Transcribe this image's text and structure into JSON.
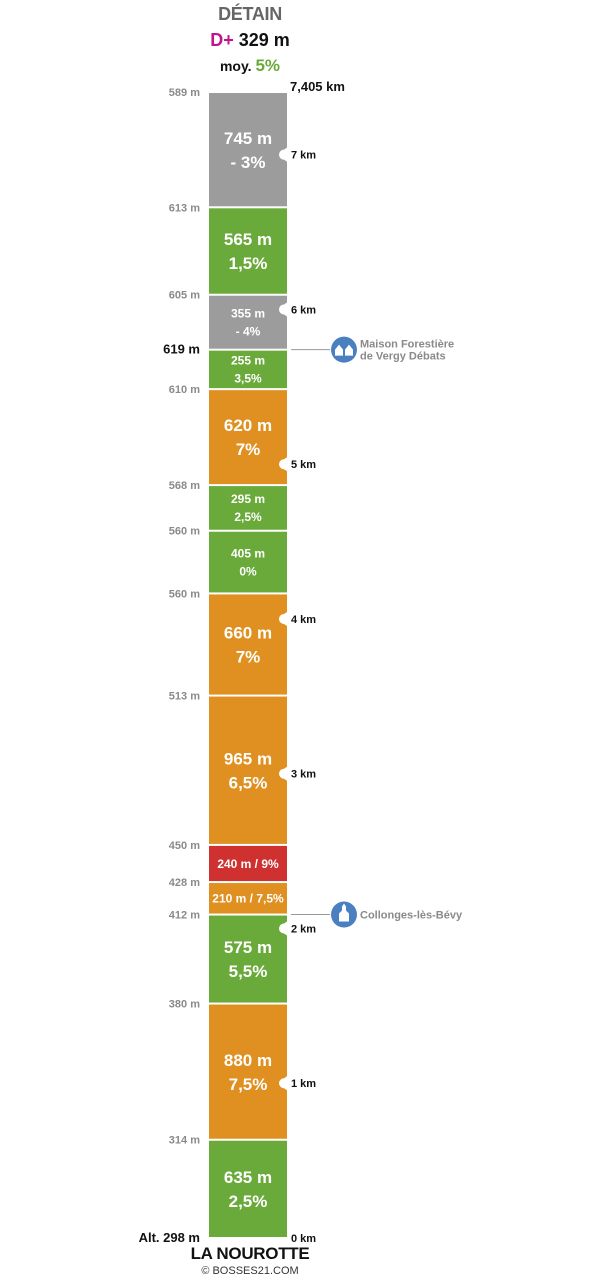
{
  "header": {
    "title": "DÉTAIN",
    "dplus_label": "D+",
    "dplus_value": "329 m",
    "average_label": "moy.",
    "average_value": "5%"
  },
  "footer": {
    "title": "LA NOUROTTE",
    "copyright": "© BOSSES21.COM"
  },
  "colors": {
    "flat": "#6aaa3a",
    "descent": "#9d9c9c",
    "climb": "#df9020",
    "steep": "#cf3030",
    "poi": "#4a80c0"
  },
  "chart_data": {
    "type": "table",
    "total_distance_km": 7.405,
    "total_distance_label": "7,405 km",
    "segments": [
      {
        "length_m": 635,
        "grade_pct": 2.5,
        "length_label": "635 m",
        "grade_label": "2,5%",
        "style": "flat"
      },
      {
        "length_m": 880,
        "grade_pct": 7.5,
        "length_label": "880 m",
        "grade_label": "7,5%",
        "style": "climb"
      },
      {
        "length_m": 575,
        "grade_pct": 5.5,
        "length_label": "575 m",
        "grade_label": "5,5%",
        "style": "flat"
      },
      {
        "length_m": 210,
        "grade_pct": 7.5,
        "length_label": "210 m / 7,5%",
        "grade_label": "",
        "style": "climb"
      },
      {
        "length_m": 240,
        "grade_pct": 9,
        "length_label": "240 m / 9%",
        "grade_label": "",
        "style": "steep"
      },
      {
        "length_m": 965,
        "grade_pct": 6.5,
        "length_label": "965 m",
        "grade_label": "6,5%",
        "style": "climb"
      },
      {
        "length_m": 660,
        "grade_pct": 7,
        "length_label": "660 m",
        "grade_label": "7%",
        "style": "climb"
      },
      {
        "length_m": 405,
        "grade_pct": 0,
        "length_label": "405 m",
        "grade_label": "0%",
        "style": "flat"
      },
      {
        "length_m": 295,
        "grade_pct": 2.5,
        "length_label": "295 m",
        "grade_label": "2,5%",
        "style": "flat"
      },
      {
        "length_m": 620,
        "grade_pct": 7,
        "length_label": "620 m",
        "grade_label": "7%",
        "style": "climb"
      },
      {
        "length_m": 255,
        "grade_pct": 3.5,
        "length_label": "255 m",
        "grade_label": "3,5%",
        "style": "flat"
      },
      {
        "length_m": 355,
        "grade_pct": -4,
        "length_label": "355 m",
        "grade_label": "- 4%",
        "style": "descent"
      },
      {
        "length_m": 565,
        "grade_pct": 1.5,
        "length_label": "565 m",
        "grade_label": "1,5%",
        "style": "flat"
      },
      {
        "length_m": 745,
        "grade_pct": -3,
        "length_label": "745 m",
        "grade_label": "- 3%",
        "style": "descent"
      }
    ],
    "altitudes": [
      {
        "at_m": 0,
        "label": "Alt. 298 m",
        "bold": true
      },
      {
        "at_m": 635,
        "label": "314 m"
      },
      {
        "at_m": 1515,
        "label": "380 m"
      },
      {
        "at_m": 2090,
        "label": "412 m"
      },
      {
        "at_m": 2300,
        "label": "428 m"
      },
      {
        "at_m": 2540,
        "label": "450 m"
      },
      {
        "at_m": 3505,
        "label": "513 m"
      },
      {
        "at_m": 4165,
        "label": "560 m"
      },
      {
        "at_m": 4570,
        "label": "560 m"
      },
      {
        "at_m": 4865,
        "label": "568 m"
      },
      {
        "at_m": 5485,
        "label": "610 m"
      },
      {
        "at_m": 5740,
        "label": "619 m",
        "bold": true
      },
      {
        "at_m": 6095,
        "label": "605 m"
      },
      {
        "at_m": 6660,
        "label": "613 m"
      },
      {
        "at_m": 7405,
        "label": "589 m"
      }
    ],
    "km_markers": [
      {
        "at_m": 0,
        "label": "0 km"
      },
      {
        "at_m": 1000,
        "label": "1 km"
      },
      {
        "at_m": 2000,
        "label": "2 km"
      },
      {
        "at_m": 3000,
        "label": "3 km"
      },
      {
        "at_m": 4000,
        "label": "4 km"
      },
      {
        "at_m": 5000,
        "label": "5 km"
      },
      {
        "at_m": 6000,
        "label": "6 km"
      },
      {
        "at_m": 7000,
        "label": "7 km"
      }
    ],
    "pois": [
      {
        "at_m": 2090,
        "lines": [
          "Collonges-lès-Bévy"
        ],
        "icon": "church-icon"
      },
      {
        "at_m": 5740,
        "lines": [
          "Maison Forestière",
          "de Vergy Débats"
        ],
        "icon": "house-icon"
      }
    ]
  }
}
